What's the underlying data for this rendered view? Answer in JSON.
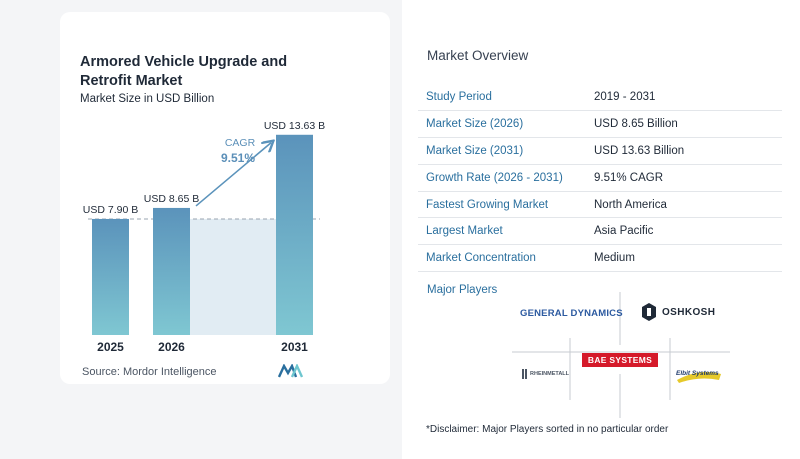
{
  "chart_data": {
    "type": "bar",
    "title": "Armored Vehicle Upgrade and Retrofit Market",
    "subtitle": "Market Size in USD Billion",
    "categories": [
      "2025",
      "2026",
      "2031"
    ],
    "values": [
      7.9,
      8.65,
      13.63
    ],
    "data_labels": [
      "USD 7.90 B",
      "USD 8.65 B",
      "USD 13.63 B"
    ],
    "cagr_label": "CAGR",
    "cagr_value": "9.51%",
    "ylim": [
      0,
      14.5
    ],
    "grid": false,
    "colors": {
      "bar_top": "#5b93bb",
      "bar_bottom": "#7fc7d2",
      "band": "#e1ecf3",
      "arrow": "#5b93bb"
    }
  },
  "source": "Source:  Mordor Intelligence",
  "overview": {
    "title": "Market Overview",
    "rows": [
      {
        "key": "Study Period",
        "value": "2019 - 2031"
      },
      {
        "key": "Market Size (2026)",
        "value": "USD 8.65 Billion"
      },
      {
        "key": "Market Size (2031)",
        "value": "USD 13.63 Billion"
      },
      {
        "key": "Growth Rate (2026 - 2031)",
        "value": "9.51% CAGR"
      },
      {
        "key": "Fastest Growing Market",
        "value": "North America"
      },
      {
        "key": "Largest Market",
        "value": "Asia Pacific"
      },
      {
        "key": "Market Concentration",
        "value": "Medium"
      }
    ]
  },
  "players": {
    "title": "Major Players",
    "logos": [
      "GENERAL DYNAMICS",
      "OSHKOSH",
      "RHEINMETALL",
      "BAE SYSTEMS",
      "Elbit Systems"
    ]
  },
  "disclaimer": "*Disclaimer: Major Players sorted in no particular order"
}
